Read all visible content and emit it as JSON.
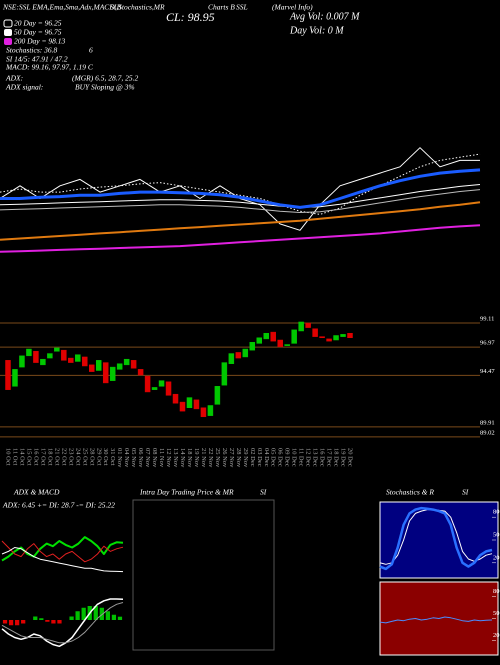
{
  "header": {
    "items": [
      "NSE:SSL EMA,Ema,Sma,Adx,MACD,B",
      "SI,Stochastics,MR",
      "Charts B",
      "SSL",
      "(Marvel Info)"
    ]
  },
  "chart_data": [
    {
      "type": "line",
      "ylim": [
        86,
        106
      ],
      "annotations": [
        "20 Day = 96.25",
        "50 Day = 96.75",
        "200 Day = 98.13",
        "Stochastics: 36.8",
        "6",
        "SI 14/5: 47.91 / 47.2",
        "MACD: 99.16, 97.97, 1.19 C",
        "ADX:",
        "(MGR) 6.5, 28.7, 25.2",
        "ADX  signal:",
        "BUY Sloping @ 3%",
        "CL: 98.95",
        "Avg Vol: 0.007 M",
        "Day Vol: 0  M"
      ],
      "series": [
        {
          "color": "#ffffff",
          "style": "dotted",
          "values": [
            97,
            97.5,
            97,
            97,
            97.5,
            97.8,
            98,
            98.3,
            98.5,
            98,
            97.5,
            97,
            96.5,
            96,
            95,
            94,
            93.5,
            94.5,
            96.5,
            98,
            99.5,
            101,
            102,
            102.5,
            103
          ]
        },
        {
          "color": "#ffffff",
          "values": [
            96,
            98,
            96,
            98,
            99,
            97,
            98,
            99,
            97,
            98,
            96,
            98,
            96,
            95,
            92,
            91,
            95,
            98,
            99,
            100,
            101,
            104,
            101,
            102,
            102
          ]
        },
        {
          "color": "#bbbbbb",
          "values": [
            94.2,
            94.3,
            94.4,
            94.5,
            94.6,
            94.7,
            94.8,
            94.9,
            95,
            95,
            94.9,
            94.8,
            94.6,
            94.3,
            94,
            93.8,
            93.9,
            94.3,
            94.8,
            95.3,
            95.8,
            96.3,
            96.7,
            97.1,
            97.4
          ]
        },
        {
          "color": "#ffffff",
          "values": [
            95,
            95.1,
            95.2,
            95.3,
            95.4,
            95.5,
            95.6,
            95.7,
            95.8,
            95.8,
            95.7,
            95.6,
            95.4,
            95.1,
            94.8,
            94.6,
            94.7,
            95.1,
            95.6,
            96.1,
            96.6,
            97.1,
            97.5,
            97.9,
            98.2
          ]
        },
        {
          "color": "#1a5cff",
          "width": 3,
          "values": [
            96,
            96,
            96.2,
            96.3,
            96.5,
            96.5,
            96.8,
            97,
            97,
            96.9,
            96.8,
            96.6,
            96.2,
            95.6,
            95,
            94.6,
            95,
            96,
            97,
            98,
            98.8,
            99.5,
            100,
            100.3,
            100.5
          ]
        },
        {
          "color": "#e07a10",
          "width": 2,
          "values": [
            89.5,
            89.7,
            89.9,
            90.1,
            90.3,
            90.5,
            90.7,
            90.9,
            91.1,
            91.3,
            91.5,
            91.7,
            91.9,
            92.1,
            92.3,
            92.5,
            92.8,
            93.1,
            93.4,
            93.7,
            94,
            94.3,
            94.7,
            95,
            95.4
          ]
        },
        {
          "color": "#e020e0",
          "width": 2,
          "values": [
            87.6,
            87.7,
            87.8,
            87.9,
            88,
            88.1,
            88.2,
            88.3,
            88.4,
            88.5,
            88.7,
            88.9,
            89.1,
            89.3,
            89.5,
            89.7,
            89.9,
            90.1,
            90.3,
            90.5,
            90.8,
            91.1,
            91.4,
            91.6,
            91.8
          ]
        }
      ]
    },
    {
      "type": "candlestick",
      "ylim": [
        88.3,
        99.55
      ],
      "yticks": [
        89.02,
        89.91,
        94.47,
        96.97,
        99.11
      ],
      "grid": true,
      "grid_color": "#7a4a1a",
      "colors": {
        "up": "#00c800",
        "down": "#e00000"
      },
      "categories": [
        "10 Oct",
        "11 Oct",
        "14 Oct",
        "15 Oct",
        "16 Oct",
        "17 Oct",
        "18 Oct",
        "21 Oct",
        "22 Oct",
        "23 Oct",
        "24 Oct",
        "25 Oct",
        "28 Oct",
        "29 Oct",
        "30 Oct",
        "31 Oct",
        "01 Nov",
        "04 Nov",
        "05 Nov",
        "06 Nov",
        "07 Nov",
        "08 Nov",
        "11 Nov",
        "12 Nov",
        "13 Nov",
        "14 Nov",
        "18 Nov",
        "19 Nov",
        "21 Nov",
        "22 Nov",
        "25 Nov",
        "26 Nov",
        "27 Nov",
        "28 Nov",
        "29 Nov",
        "02 Dec",
        "03 Dec",
        "04 Dec",
        "05 Dec",
        "06 Dec",
        "09 Dec",
        "10 Dec",
        "11 Dec",
        "12 Dec",
        "13 Dec",
        "16 Dec",
        "17 Dec",
        "18 Dec",
        "19 Dec",
        "20 Dec"
      ],
      "open": [
        95.8,
        93.5,
        95.2,
        96.2,
        96.6,
        95.4,
        96.0,
        96.6,
        96.7,
        96.0,
        95.7,
        96.1,
        95.4,
        94.9,
        95.6,
        94.0,
        95.0,
        95.4,
        95.8,
        95.0,
        94.4,
        93.2,
        93.5,
        93.9,
        92.8,
        92.1,
        91.6,
        92.3,
        91.6,
        90.9,
        91.9,
        93.6,
        95.5,
        96.5,
        96.1,
        96.7,
        97.3,
        97.7,
        98.3,
        97.6,
        97.1,
        97.3,
        98.4,
        99.1,
        98.6,
        97.9,
        97.7,
        97.6,
        97.9,
        98.2
      ],
      "close": [
        93.2,
        95.0,
        96.2,
        96.8,
        95.6,
        95.9,
        96.4,
        96.9,
        95.8,
        95.6,
        96.3,
        95.3,
        94.8,
        95.8,
        93.8,
        95.2,
        95.5,
        95.9,
        95.1,
        94.5,
        93.0,
        93.4,
        94.0,
        92.7,
        92.0,
        91.3,
        92.5,
        91.5,
        90.8,
        91.8,
        93.5,
        95.6,
        96.4,
        96.0,
        96.8,
        97.4,
        97.8,
        98.2,
        97.5,
        97.0,
        97.2,
        98.5,
        99.2,
        98.7,
        97.9,
        97.8,
        97.5,
        98.0,
        98.1,
        97.8
      ]
    },
    {
      "type": "line",
      "title": "ADX  & MACD",
      "ylim": [
        0,
        50
      ],
      "annotations": [
        "ADX: 6.45 += DI: 28.7 -= DI: 25.22"
      ],
      "series": [
        {
          "color": "#00e000",
          "width": 2,
          "values": [
            15,
            18,
            22,
            25,
            20,
            18,
            24,
            28,
            26,
            30,
            27,
            25,
            28,
            33,
            30,
            26,
            20,
            27,
            29,
            28.7
          ]
        },
        {
          "color": "#e02020",
          "values": [
            30,
            25,
            20,
            18,
            24,
            28,
            22,
            18,
            20,
            16,
            20,
            22,
            18,
            14,
            16,
            20,
            26,
            22,
            24,
            25.22
          ]
        },
        {
          "color": "#ffffff",
          "values": [
            20,
            22,
            25,
            24,
            21,
            18,
            16,
            15,
            14,
            13,
            12,
            11,
            10,
            9,
            9,
            8,
            7,
            6.8,
            6.6,
            6.45
          ]
        }
      ]
    },
    {
      "type": "line",
      "ylim": [
        -2,
        2
      ],
      "histogram": [
        -0.2,
        -0.3,
        -0.3,
        -0.2,
        0,
        0.2,
        0.1,
        -0.1,
        -0.2,
        -0.2,
        0,
        0.2,
        0.5,
        0.7,
        0.8,
        0.8,
        0.7,
        0.5,
        0.3,
        0.19
      ],
      "histogram_colors": [
        "#00c000",
        "#e00000"
      ],
      "series": [
        {
          "color": "#ffffff",
          "width": 1.5,
          "values": [
            -0.5,
            -0.8,
            -1.0,
            -1.1,
            -1.0,
            -0.8,
            -0.9,
            -1.2,
            -1.4,
            -1.5,
            -1.3,
            -1.0,
            -0.5,
            0.0,
            0.5,
            0.9,
            1.1,
            1.2,
            1.2,
            1.19
          ]
        },
        {
          "color": "#999999",
          "values": [
            -0.3,
            -0.5,
            -0.7,
            -0.9,
            -1.0,
            -1.0,
            -1.0,
            -1.1,
            -1.2,
            -1.3,
            -1.3,
            -1.2,
            -1.0,
            -0.7,
            -0.3,
            0.1,
            0.4,
            0.7,
            0.9,
            1.0
          ]
        }
      ]
    },
    {
      "type": "line",
      "title": "Intra Day Trading Price & MR",
      "annotations": [
        "SI"
      ],
      "frame": "#555555",
      "series": []
    },
    {
      "type": "line",
      "title": "Stochastics & R",
      "annotations": [
        "SI"
      ],
      "ylim": [
        0,
        100
      ],
      "yticks": [
        20,
        50,
        80
      ],
      "background": "#000080",
      "frame": "#ffffff",
      "series": [
        {
          "color": "#ffffff",
          "values": [
            20,
            18,
            20,
            30,
            50,
            75,
            85,
            88,
            90,
            90,
            89,
            88,
            80,
            60,
            35,
            25,
            22,
            25,
            30,
            32
          ]
        },
        {
          "color": "#2a70ff",
          "width": 2.5,
          "values": [
            15,
            12,
            18,
            40,
            70,
            85,
            90,
            92,
            91,
            90,
            88,
            85,
            70,
            40,
            20,
            15,
            20,
            30,
            35,
            36.8
          ]
        }
      ]
    },
    {
      "type": "line",
      "ylim": [
        0,
        100
      ],
      "yticks": [
        20,
        50,
        80
      ],
      "background": "#8b0000",
      "frame": "#ffffff",
      "series": [
        {
          "color": "#4a8cff",
          "values": [
            45,
            44,
            46,
            48,
            47,
            49,
            50,
            48,
            49,
            51,
            50,
            52,
            51,
            49,
            47,
            46,
            48,
            47,
            47.5,
            47.91
          ]
        }
      ]
    }
  ]
}
